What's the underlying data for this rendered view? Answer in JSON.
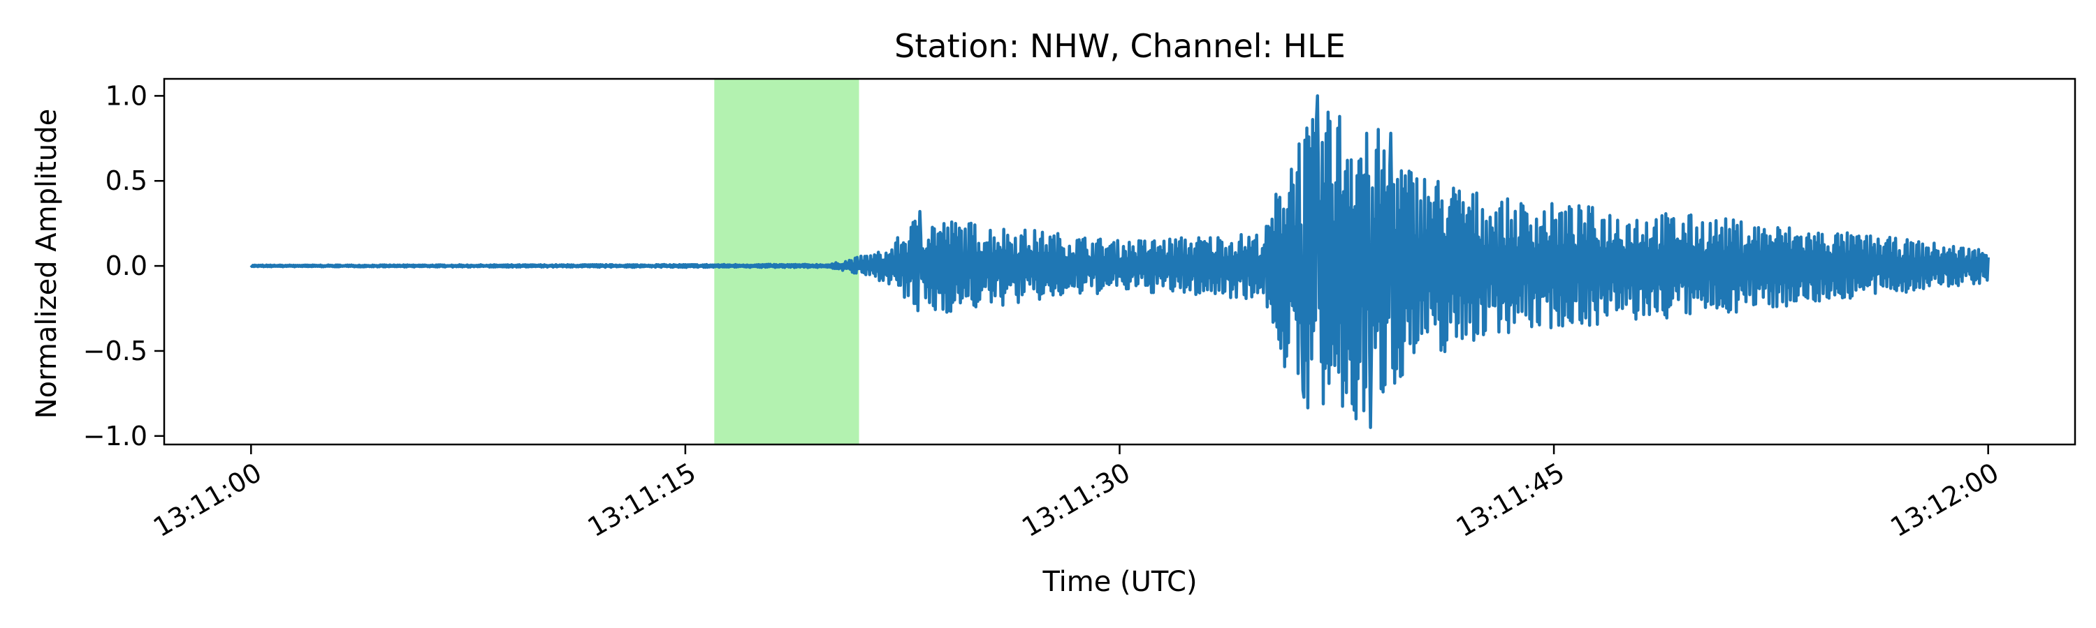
{
  "chart_data": {
    "type": "line",
    "title": "Station: NHW, Channel: HLE",
    "xlabel": "Time (UTC)",
    "ylabel": "Normalized Amplitude",
    "x_tick_labels": [
      "13:11:00",
      "13:11:15",
      "13:11:30",
      "13:11:45",
      "13:12:00"
    ],
    "x_ticks": [
      "13:11:00",
      "13:11:15",
      "13:11:30",
      "13:11:45",
      "13:12:00"
    ],
    "xlim": [
      "13:10:57",
      "13:12:03"
    ],
    "y_tick_labels": [
      "1.0",
      "0.5",
      "0.0",
      "−0.5",
      "−1.0"
    ],
    "y_ticks": [
      1.0,
      0.5,
      0.0,
      -0.5,
      -1.0
    ],
    "ylim": [
      -1.05,
      1.1
    ],
    "grid": false,
    "highlight": {
      "x_start": "13:11:16",
      "x_end": "13:11:21",
      "color": "#b3f2b0"
    },
    "series": [
      {
        "color": "#1f77b4",
        "envelope": [
          {
            "time": "13:11:00",
            "amplitude": 0.005
          },
          {
            "time": "13:11:20",
            "amplitude": 0.01
          },
          {
            "time": "13:11:22",
            "amplitude": 0.1
          },
          {
            "time": "13:11:23",
            "amplitude": 0.3
          },
          {
            "time": "13:11:30",
            "amplitude": 0.15
          },
          {
            "time": "13:11:35",
            "amplitude": 0.2
          },
          {
            "time": "13:11:36",
            "amplitude": 0.8
          },
          {
            "time": "13:11:38",
            "amplitude": 1.0
          },
          {
            "time": "13:11:40",
            "amplitude": 0.6
          },
          {
            "time": "13:11:43",
            "amplitude": 0.4
          },
          {
            "time": "13:11:50",
            "amplitude": 0.3
          },
          {
            "time": "13:11:55",
            "amplitude": 0.2
          },
          {
            "time": "13:12:00",
            "amplitude": 0.1
          }
        ],
        "peaks": [
          {
            "time": "13:11:23",
            "value": 0.32
          },
          {
            "time": "13:11:36",
            "value": 1.0
          },
          {
            "time": "13:11:36",
            "value": -0.73
          },
          {
            "time": "13:11:37",
            "value": 0.85
          },
          {
            "time": "13:11:38",
            "value": -0.95
          },
          {
            "time": "13:11:38",
            "value": 0.78
          },
          {
            "time": "13:11:39",
            "value": 0.78
          },
          {
            "time": "13:11:39",
            "value": -0.65
          }
        ]
      }
    ]
  }
}
